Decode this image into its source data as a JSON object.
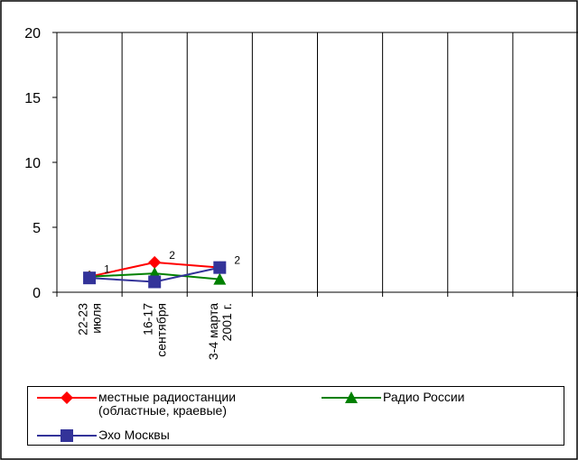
{
  "chart_data": {
    "type": "line",
    "categories": [
      "22-23\nиюля",
      "16-17\nсентября",
      "3-4 марта\n2001 г.",
      null,
      null,
      null,
      null,
      null
    ],
    "series": [
      {
        "name": "местные радиостанции (областные, краевые)",
        "color": "#ff0000",
        "marker": "diamond",
        "values": [
          1.2,
          2.3,
          1.9,
          null,
          null,
          null,
          null,
          null
        ],
        "value_labels": [
          "1",
          "2",
          null,
          null,
          null,
          null,
          null,
          null
        ]
      },
      {
        "name": "Радио России",
        "color": "#008000",
        "marker": "triangle",
        "values": [
          1.2,
          1.45,
          1.0,
          null,
          null,
          null,
          null,
          null
        ]
      },
      {
        "name": "Эхо Москвы",
        "color": "#333399",
        "marker": "square",
        "values": [
          1.1,
          0.8,
          1.9,
          null,
          null,
          null,
          null,
          null
        ],
        "value_labels": [
          null,
          null,
          "2",
          null,
          null,
          null,
          null,
          null
        ]
      }
    ],
    "ylim": [
      0,
      20
    ],
    "yticks": [
      0,
      5,
      10,
      15,
      20
    ],
    "grid": "x"
  }
}
